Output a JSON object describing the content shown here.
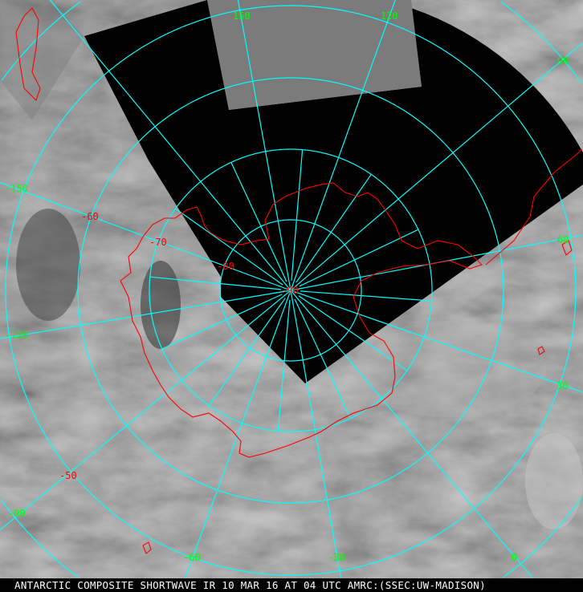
{
  "caption": "ANTARCTIC COMPOSITE SHORTWAVE IR 10 MAR 16 AT 04 UTC AMRC:(SSEC:UW-MADISON)",
  "frame_marker": "1",
  "colors": {
    "graticule": "#00ffff",
    "coastline": "#ff0000",
    "longitude_labels": "#00ff00",
    "latitude_labels": "#ff0000",
    "no_data": "#000000"
  },
  "projection": "polar stereographic (south pole)",
  "longitude_labels": [
    "150",
    "120",
    "90",
    "60",
    "30",
    "0",
    "-30",
    "-60",
    "-90",
    "-120",
    "-150"
  ],
  "latitude_labels": [
    "-90",
    "-80",
    "-70",
    "-60",
    "-50"
  ]
}
